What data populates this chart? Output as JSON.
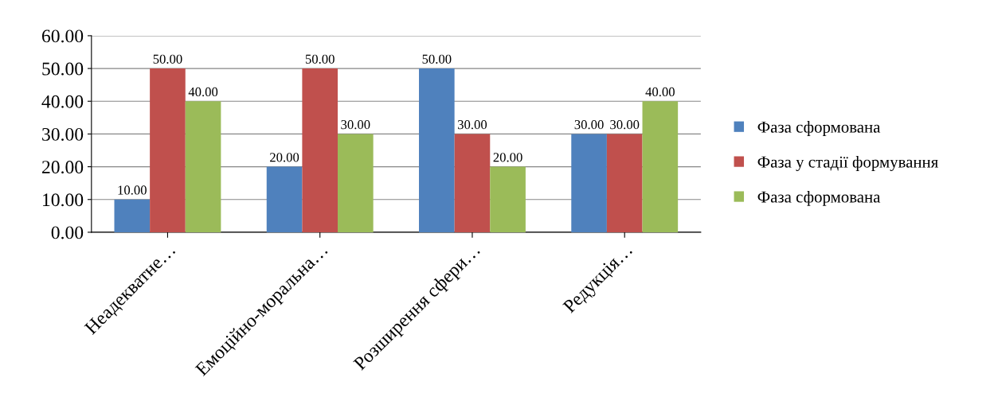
{
  "chart_data": {
    "type": "bar",
    "categories": [
      "Неадекватне…",
      "Емоційно-моральна…",
      "Розширення сфери…",
      "Редукція…"
    ],
    "series": [
      {
        "name": "Фаза сформована",
        "color": "#4f81bd",
        "values": [
          10,
          20,
          50,
          30
        ],
        "value_labels": [
          "10.00",
          "20.00",
          "50.00",
          "30.00"
        ]
      },
      {
        "name": "Фаза у стадії формування",
        "color": "#c0504d",
        "values": [
          50,
          50,
          30,
          30
        ],
        "value_labels": [
          "50.00",
          "50.00",
          "30.00",
          "30.00"
        ]
      },
      {
        "name": "Фаза сформована",
        "color": "#9bbb59",
        "values": [
          40,
          30,
          20,
          40
        ],
        "value_labels": [
          "40.00",
          "30.00",
          "20.00",
          "40.00"
        ]
      }
    ],
    "ylim": [
      0,
      60
    ],
    "yticks": [
      {
        "value": 0,
        "label": "0.00"
      },
      {
        "value": 10,
        "label": "10.00"
      },
      {
        "value": 20,
        "label": "20.00"
      },
      {
        "value": 30,
        "label": "30.00"
      },
      {
        "value": 40,
        "label": "40.00"
      },
      {
        "value": 50,
        "label": "50.00"
      },
      {
        "value": 60,
        "label": "60.00"
      }
    ],
    "grid": "y",
    "legend": "right"
  }
}
